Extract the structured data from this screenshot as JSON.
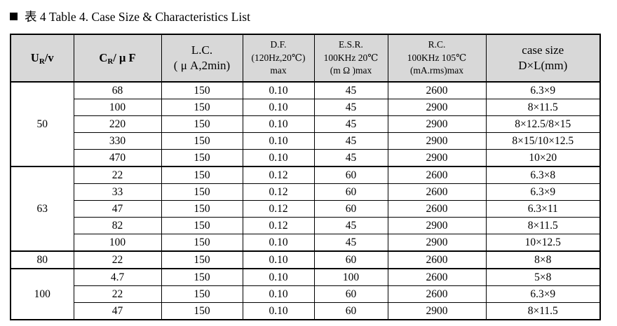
{
  "title": {
    "bullet": "square",
    "text": "表 4 Table 4. Case Size & Characteristics List"
  },
  "table": {
    "colors": {
      "header_bg": "#d8d8d8",
      "border": "#000000",
      "text": "#000000"
    },
    "headers": {
      "ur": {
        "base": "U",
        "sub": "R",
        "rest": "/v"
      },
      "cr": {
        "base": "C",
        "sub": "R",
        "rest": "/ μ F"
      },
      "lc": {
        "line1": "L.C.",
        "line2": "( μ A,2min)"
      },
      "df": {
        "line1": "D.F.",
        "line2": "(120Hz,20℃)",
        "line3": "max"
      },
      "esr": {
        "line1": "E.S.R.",
        "line2": "100KHz 20℃",
        "line3": "(m Ω )max"
      },
      "rc": {
        "line1": "R.C.",
        "line2": "100KHz 105℃",
        "line3": "(mA.rms)max"
      },
      "case": {
        "line1": "case size",
        "line2": "D×L(mm)"
      }
    },
    "column_names": [
      "capacitance-cell",
      "leakage-current-cell",
      "dissipation-factor-cell",
      "esr-cell",
      "ripple-current-cell",
      "case-size-cell"
    ],
    "groups": [
      {
        "voltage": "50",
        "rows": [
          [
            "68",
            "150",
            "0.10",
            "45",
            "2600",
            "6.3×9"
          ],
          [
            "100",
            "150",
            "0.10",
            "45",
            "2900",
            "8×11.5"
          ],
          [
            "220",
            "150",
            "0.10",
            "45",
            "2900",
            "8×12.5/8×15"
          ],
          [
            "330",
            "150",
            "0.10",
            "45",
            "2900",
            "8×15/10×12.5"
          ],
          [
            "470",
            "150",
            "0.10",
            "45",
            "2900",
            "10×20"
          ]
        ]
      },
      {
        "voltage": "63",
        "rows": [
          [
            "22",
            "150",
            "0.12",
            "60",
            "2600",
            "6.3×8"
          ],
          [
            "33",
            "150",
            "0.12",
            "60",
            "2600",
            "6.3×9"
          ],
          [
            "47",
            "150",
            "0.12",
            "60",
            "2600",
            "6.3×11"
          ],
          [
            "82",
            "150",
            "0.12",
            "45",
            "2900",
            "8×11.5"
          ],
          [
            "100",
            "150",
            "0.10",
            "45",
            "2900",
            "10×12.5"
          ]
        ]
      },
      {
        "voltage": "80",
        "rows": [
          [
            "22",
            "150",
            "0.10",
            "60",
            "2600",
            "8×8"
          ]
        ]
      },
      {
        "voltage": "100",
        "rows": [
          [
            "4.7",
            "150",
            "0.10",
            "100",
            "2600",
            "5×8"
          ],
          [
            "22",
            "150",
            "0.10",
            "60",
            "2600",
            "6.3×9"
          ],
          [
            "47",
            "150",
            "0.10",
            "60",
            "2900",
            "8×11.5"
          ]
        ]
      }
    ]
  }
}
